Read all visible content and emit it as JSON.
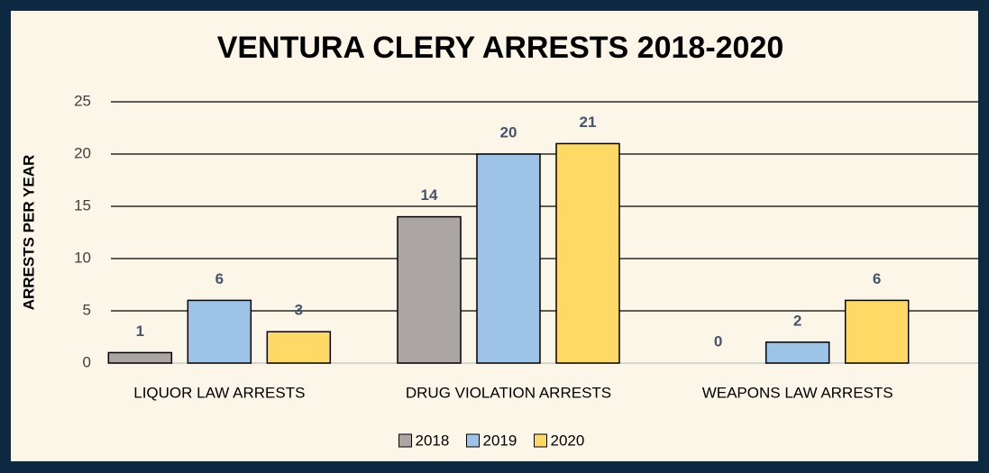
{
  "chart_data": {
    "type": "bar",
    "title": "VENTURA CLERY ARRESTS 2018-2020",
    "y_axis_label": "ARRESTS PER YEAR",
    "categories": [
      "LIQUOR LAW ARRESTS",
      "DRUG VIOLATION ARRESTS",
      "WEAPONS LAW ARRESTS"
    ],
    "series": [
      {
        "name": "2018",
        "color": "#aba6a4",
        "values": [
          1,
          14,
          0
        ]
      },
      {
        "name": "2019",
        "color": "#9dc3e6",
        "values": [
          6,
          20,
          2
        ]
      },
      {
        "name": "2020",
        "color": "#ffd966",
        "values": [
          3,
          21,
          6
        ]
      }
    ],
    "ylim": [
      0,
      25
    ],
    "yticks": [
      0,
      5,
      10,
      15,
      20,
      25
    ],
    "grid": true,
    "legend": "bottom"
  }
}
